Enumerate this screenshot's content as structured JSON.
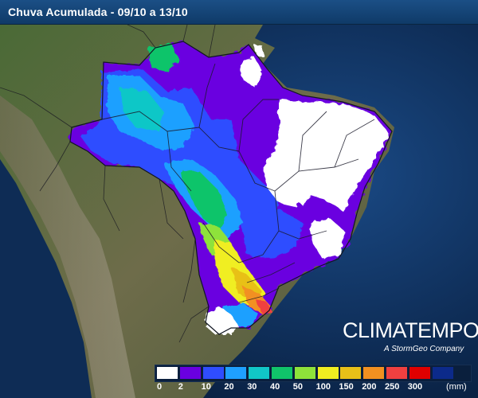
{
  "header": {
    "title": "Chuva Acumulada - 09/10 a 13/10"
  },
  "logo": {
    "brand": "CLIMATEMPO",
    "tagline": "A StormGeo Company"
  },
  "legend": {
    "unit": "(mm)",
    "items": [
      {
        "label": "0",
        "color": "#ffffff"
      },
      {
        "label": "2",
        "color": "#6a00e0"
      },
      {
        "label": "10",
        "color": "#2f4dff"
      },
      {
        "label": "20",
        "color": "#1fa0ff"
      },
      {
        "label": "30",
        "color": "#11c7c7"
      },
      {
        "label": "40",
        "color": "#10c46a"
      },
      {
        "label": "50",
        "color": "#8ee23a"
      },
      {
        "label": "100",
        "color": "#f0ee20"
      },
      {
        "label": "150",
        "color": "#e8c018"
      },
      {
        "label": "200",
        "color": "#f29020"
      },
      {
        "label": "250",
        "color": "#f04040"
      },
      {
        "label": "300",
        "color": "#e00000"
      },
      {
        "label": "",
        "color": "#0c2a8a"
      }
    ]
  },
  "map": {
    "ocean_color": "#10305a",
    "land_color": "#5c6a45"
  }
}
